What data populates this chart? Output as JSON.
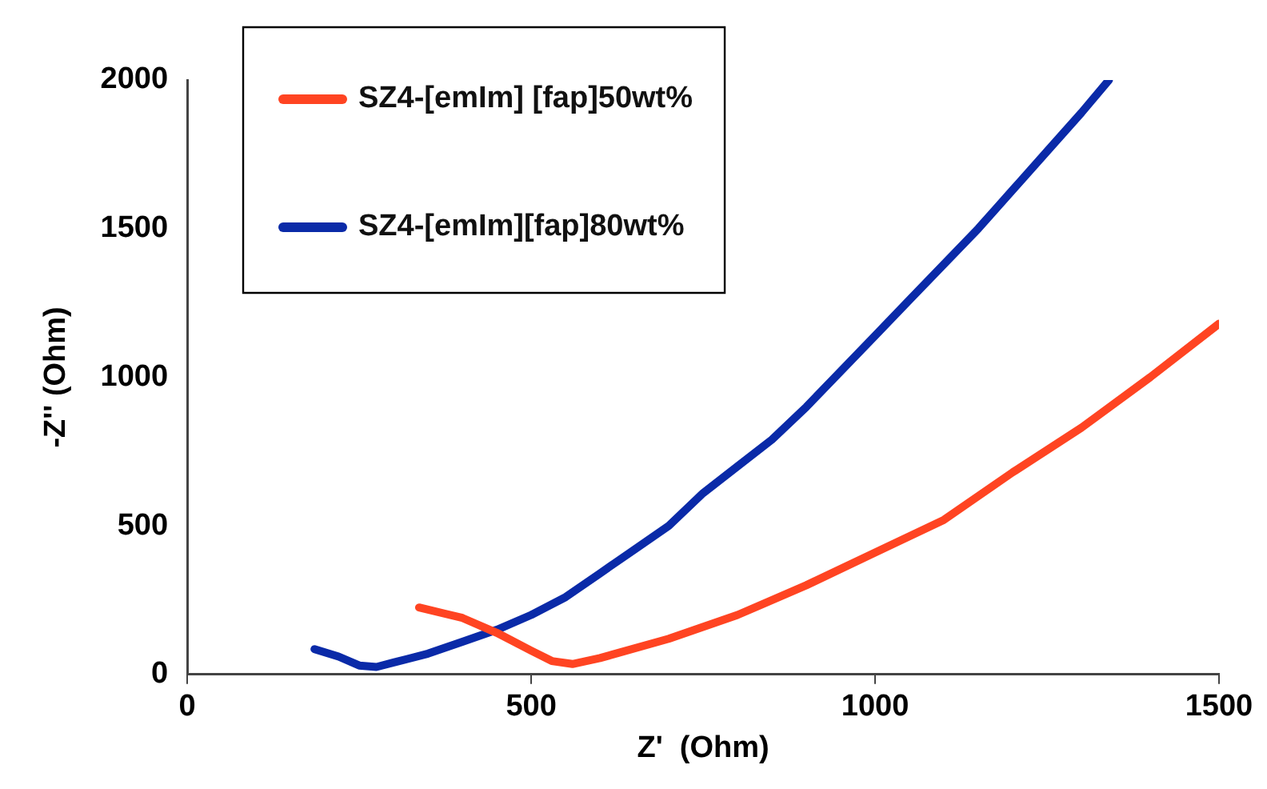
{
  "chart_data": {
    "type": "line",
    "xlabel": "Z'  (Ohm)",
    "ylabel": "-Z'' (Ohm)",
    "xlim": [
      0,
      1500
    ],
    "xticks": [
      0,
      500,
      1000,
      1500
    ],
    "ylim": [
      0,
      2000
    ],
    "yticks": [
      0,
      500,
      1000,
      1500,
      2000
    ],
    "grid": false,
    "legend": "top left",
    "marker": "none",
    "line_style": "solid",
    "series": [
      {
        "name": "SZ4-[emIm] [fap]50wt%",
        "color": "#ff4422",
        "x": [
          337,
          400,
          450,
          500,
          530,
          560,
          600,
          700,
          800,
          900,
          1000,
          1100,
          1200,
          1300,
          1400,
          1500
        ],
        "values": [
          225,
          190,
          140,
          80,
          45,
          35,
          55,
          120,
          200,
          300,
          410,
          520,
          680,
          830,
          1000,
          1180
        ]
      },
      {
        "name": "SZ4-[emIm][fap]80wt%",
        "color": "#0a2aa8",
        "x": [
          185,
          220,
          250,
          275,
          300,
          350,
          400,
          450,
          500,
          550,
          600,
          650,
          700,
          750,
          800,
          850,
          900,
          950,
          1000,
          1050,
          1100,
          1150,
          1200,
          1250,
          1300,
          1340
        ],
        "values": [
          85,
          60,
          30,
          25,
          40,
          70,
          110,
          150,
          200,
          260,
          340,
          420,
          500,
          610,
          700,
          790,
          900,
          1020,
          1140,
          1260,
          1380,
          1500,
          1630,
          1760,
          1890,
          2000
        ]
      }
    ]
  }
}
